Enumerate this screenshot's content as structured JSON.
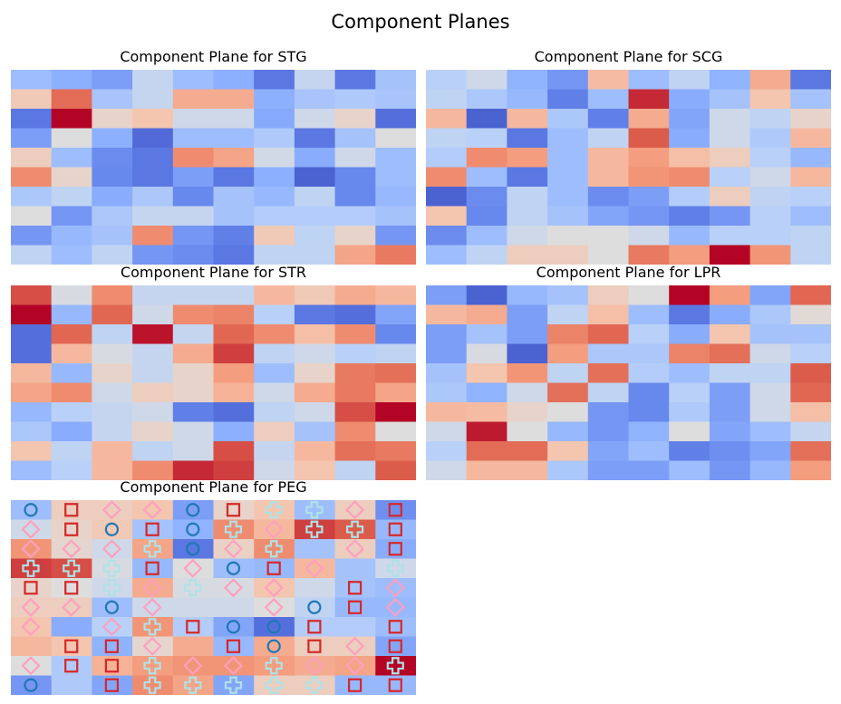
{
  "title": "Component Planes",
  "chart_data": [
    {
      "type": "heatmap",
      "title": "Component Plane for STG",
      "colormap": "coolwarm",
      "vmin": 0,
      "vmax": 1,
      "rows": 10,
      "cols": 10,
      "values": [
        [
          0.3,
          0.25,
          0.2,
          0.42,
          0.3,
          0.25,
          0.1,
          0.42,
          0.1,
          0.32
        ],
        [
          0.6,
          0.85,
          0.33,
          0.42,
          0.7,
          0.7,
          0.25,
          0.33,
          0.35,
          0.33
        ],
        [
          0.1,
          1.0,
          0.55,
          0.62,
          0.45,
          0.45,
          0.23,
          0.45,
          0.55,
          0.08
        ],
        [
          0.2,
          0.5,
          0.25,
          0.07,
          0.3,
          0.3,
          0.35,
          0.1,
          0.32,
          0.5
        ],
        [
          0.58,
          0.3,
          0.15,
          0.1,
          0.78,
          0.72,
          0.46,
          0.24,
          0.45,
          0.3
        ],
        [
          0.78,
          0.55,
          0.14,
          0.1,
          0.2,
          0.1,
          0.25,
          0.05,
          0.14,
          0.3
        ],
        [
          0.34,
          0.4,
          0.24,
          0.34,
          0.14,
          0.32,
          0.28,
          0.4,
          0.14,
          0.28
        ],
        [
          0.5,
          0.18,
          0.34,
          0.42,
          0.42,
          0.32,
          0.36,
          0.36,
          0.36,
          0.32
        ],
        [
          0.18,
          0.28,
          0.32,
          0.78,
          0.18,
          0.12,
          0.6,
          0.4,
          0.55,
          0.18
        ],
        [
          0.4,
          0.3,
          0.4,
          0.18,
          0.15,
          0.1,
          0.4,
          0.4,
          0.72,
          0.82
        ]
      ]
    },
    {
      "type": "heatmap",
      "title": "Component Plane for SCG",
      "colormap": "coolwarm",
      "vmin": 0,
      "vmax": 1,
      "rows": 10,
      "cols": 10,
      "values": [
        [
          0.38,
          0.45,
          0.26,
          0.18,
          0.65,
          0.3,
          0.4,
          0.26,
          0.7,
          0.1
        ],
        [
          0.4,
          0.34,
          0.28,
          0.12,
          0.3,
          0.95,
          0.24,
          0.32,
          0.62,
          0.32
        ],
        [
          0.66,
          0.05,
          0.66,
          0.34,
          0.12,
          0.7,
          0.22,
          0.45,
          0.4,
          0.55
        ],
        [
          0.4,
          0.38,
          0.1,
          0.3,
          0.4,
          0.88,
          0.24,
          0.45,
          0.35,
          0.66
        ],
        [
          0.36,
          0.78,
          0.74,
          0.3,
          0.66,
          0.74,
          0.64,
          0.58,
          0.38,
          0.28
        ],
        [
          0.78,
          0.3,
          0.1,
          0.3,
          0.66,
          0.76,
          0.78,
          0.38,
          0.45,
          0.66
        ],
        [
          0.05,
          0.15,
          0.4,
          0.3,
          0.15,
          0.2,
          0.36,
          0.58,
          0.4,
          0.38
        ],
        [
          0.62,
          0.14,
          0.4,
          0.32,
          0.22,
          0.18,
          0.12,
          0.18,
          0.38,
          0.3
        ],
        [
          0.15,
          0.3,
          0.45,
          0.5,
          0.5,
          0.45,
          0.28,
          0.38,
          0.38,
          0.4
        ],
        [
          0.3,
          0.4,
          0.58,
          0.58,
          0.5,
          0.82,
          0.74,
          1.0,
          0.76,
          0.4
        ]
      ]
    },
    {
      "type": "heatmap",
      "title": "Component Plane for STR",
      "colormap": "coolwarm",
      "vmin": 0,
      "vmax": 1,
      "rows": 10,
      "cols": 10,
      "values": [
        [
          0.9,
          0.48,
          0.78,
          0.42,
          0.42,
          0.42,
          0.66,
          0.6,
          0.7,
          0.66
        ],
        [
          1.0,
          0.28,
          0.86,
          0.45,
          0.78,
          0.8,
          0.38,
          0.1,
          0.08,
          0.22
        ],
        [
          0.08,
          0.86,
          0.4,
          0.98,
          0.42,
          0.86,
          0.78,
          0.64,
          0.78,
          0.14
        ],
        [
          0.08,
          0.66,
          0.48,
          0.42,
          0.7,
          0.92,
          0.4,
          0.45,
          0.38,
          0.4
        ],
        [
          0.66,
          0.28,
          0.55,
          0.42,
          0.55,
          0.74,
          0.3,
          0.55,
          0.82,
          0.84
        ],
        [
          0.72,
          0.78,
          0.45,
          0.58,
          0.55,
          0.68,
          0.45,
          0.7,
          0.82,
          0.72
        ],
        [
          0.28,
          0.38,
          0.42,
          0.45,
          0.12,
          0.08,
          0.4,
          0.45,
          0.9,
          1.0
        ],
        [
          0.34,
          0.24,
          0.42,
          0.55,
          0.45,
          0.25,
          0.58,
          0.32,
          0.78,
          0.5
        ],
        [
          0.62,
          0.4,
          0.66,
          0.4,
          0.45,
          0.9,
          0.42,
          0.66,
          0.84,
          0.82
        ],
        [
          0.3,
          0.38,
          0.66,
          0.78,
          0.95,
          0.92,
          0.45,
          0.62,
          0.4,
          0.88
        ]
      ]
    },
    {
      "type": "heatmap",
      "title": "Component Plane for LPR",
      "colormap": "coolwarm",
      "vmin": 0,
      "vmax": 1,
      "rows": 10,
      "cols": 10,
      "values": [
        [
          0.2,
          0.05,
          0.28,
          0.32,
          0.58,
          0.5,
          1.0,
          0.74,
          0.22,
          0.86
        ],
        [
          0.66,
          0.7,
          0.2,
          0.4,
          0.64,
          0.3,
          0.1,
          0.24,
          0.34,
          0.52
        ],
        [
          0.2,
          0.32,
          0.2,
          0.8,
          0.86,
          0.38,
          0.24,
          0.62,
          0.32,
          0.32
        ],
        [
          0.2,
          0.48,
          0.05,
          0.74,
          0.34,
          0.34,
          0.8,
          0.84,
          0.45,
          0.38
        ],
        [
          0.32,
          0.62,
          0.76,
          0.4,
          0.84,
          0.36,
          0.3,
          0.4,
          0.4,
          0.88
        ],
        [
          0.34,
          0.26,
          0.45,
          0.84,
          0.4,
          0.14,
          0.38,
          0.2,
          0.45,
          0.86
        ],
        [
          0.66,
          0.65,
          0.55,
          0.5,
          0.18,
          0.14,
          0.35,
          0.2,
          0.45,
          0.64
        ],
        [
          0.45,
          0.97,
          0.5,
          0.28,
          0.18,
          0.26,
          0.5,
          0.22,
          0.3,
          0.42
        ],
        [
          0.38,
          0.85,
          0.85,
          0.62,
          0.22,
          0.3,
          0.12,
          0.16,
          0.22,
          0.84
        ],
        [
          0.45,
          0.66,
          0.66,
          0.34,
          0.2,
          0.2,
          0.3,
          0.18,
          0.28,
          0.74
        ]
      ]
    },
    {
      "type": "heatmap",
      "title": "Component Plane for PEG",
      "colormap": "coolwarm",
      "vmin": 0,
      "vmax": 1,
      "rows": 10,
      "cols": 10,
      "values": [
        [
          0.3,
          0.58,
          0.58,
          0.62,
          0.2,
          0.55,
          0.62,
          0.3,
          0.58,
          0.16
        ],
        [
          0.45,
          0.55,
          0.6,
          0.32,
          0.26,
          0.78,
          0.66,
          0.92,
          0.88,
          0.28
        ],
        [
          0.76,
          0.54,
          0.45,
          0.72,
          0.1,
          0.56,
          0.78,
          0.32,
          0.58,
          0.24
        ],
        [
          0.92,
          0.9,
          0.48,
          0.28,
          0.5,
          0.3,
          0.28,
          0.66,
          0.32,
          0.45
        ],
        [
          0.55,
          0.5,
          0.45,
          0.7,
          0.48,
          0.48,
          0.62,
          0.45,
          0.32,
          0.3
        ],
        [
          0.58,
          0.58,
          0.3,
          0.45,
          0.45,
          0.45,
          0.5,
          0.4,
          0.28,
          0.28
        ],
        [
          0.62,
          0.24,
          0.38,
          0.76,
          0.36,
          0.22,
          0.08,
          0.36,
          0.36,
          0.3
        ],
        [
          0.66,
          0.62,
          0.26,
          0.54,
          0.7,
          0.28,
          0.7,
          0.58,
          0.58,
          0.22
        ],
        [
          0.5,
          0.35,
          0.68,
          0.74,
          0.76,
          0.76,
          0.74,
          0.7,
          0.72,
          1.0
        ],
        [
          0.18,
          0.35,
          0.22,
          0.78,
          0.72,
          0.22,
          0.58,
          0.58,
          0.28,
          0.28
        ]
      ],
      "marker_styles": {
        "o": {
          "shape": "circle",
          "color": "#1f77b4"
        },
        "s": {
          "shape": "square",
          "color": "#d62728"
        },
        "D": {
          "shape": "diamond",
          "color": "#ff9fbe"
        },
        "P": {
          "shape": "plus",
          "color": "#aee2e6"
        }
      },
      "markers": [
        [
          "o",
          "s",
          "D",
          "D",
          "o",
          "s",
          "P",
          "P",
          "D",
          "s"
        ],
        [
          "D",
          "s",
          "o",
          "s",
          "o",
          "P",
          "D",
          "P",
          "P",
          "s"
        ],
        [
          "D",
          "D",
          "D",
          "P",
          "o",
          "D",
          "P",
          "",
          "D",
          "s"
        ],
        [
          "P",
          "P",
          "P",
          "s",
          "D",
          "o",
          "s",
          "D",
          "",
          "P"
        ],
        [
          "s",
          "s",
          "P",
          "D",
          "P",
          "D",
          "D",
          "",
          "s",
          "D"
        ],
        [
          "D",
          "D",
          "o",
          "D",
          "",
          "",
          "D",
          "o",
          "s",
          "D"
        ],
        [
          "D",
          "",
          "D",
          "P",
          "s",
          "o",
          "o",
          "s",
          "",
          "s"
        ],
        [
          "",
          "s",
          "s",
          "D",
          "",
          "s",
          "o",
          "s",
          "D",
          "s"
        ],
        [
          "D",
          "s",
          "s",
          "P",
          "D",
          "D",
          "P",
          "D",
          "D",
          "P"
        ],
        [
          "o",
          "",
          "s",
          "P",
          "P",
          "P",
          "P",
          "P",
          "s",
          "s"
        ]
      ]
    }
  ]
}
